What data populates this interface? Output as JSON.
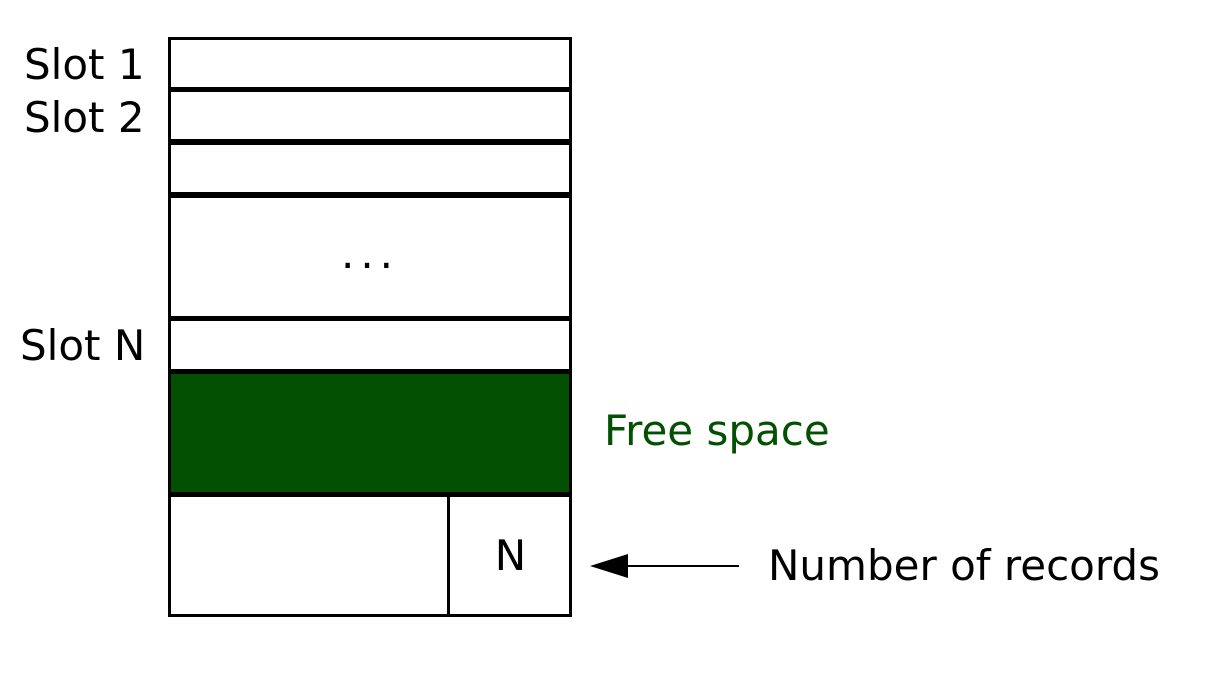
{
  "labels": {
    "slot_1": "Slot 1",
    "slot_2": "Slot 2",
    "slot_n": "Slot N",
    "ellipsis": "...",
    "free_space": "Free space",
    "record_count_symbol": "N",
    "record_count_description": "Number of records"
  },
  "colors": {
    "free_space_fill": "#035003",
    "free_space_text": "#035003",
    "line": "#000000"
  }
}
